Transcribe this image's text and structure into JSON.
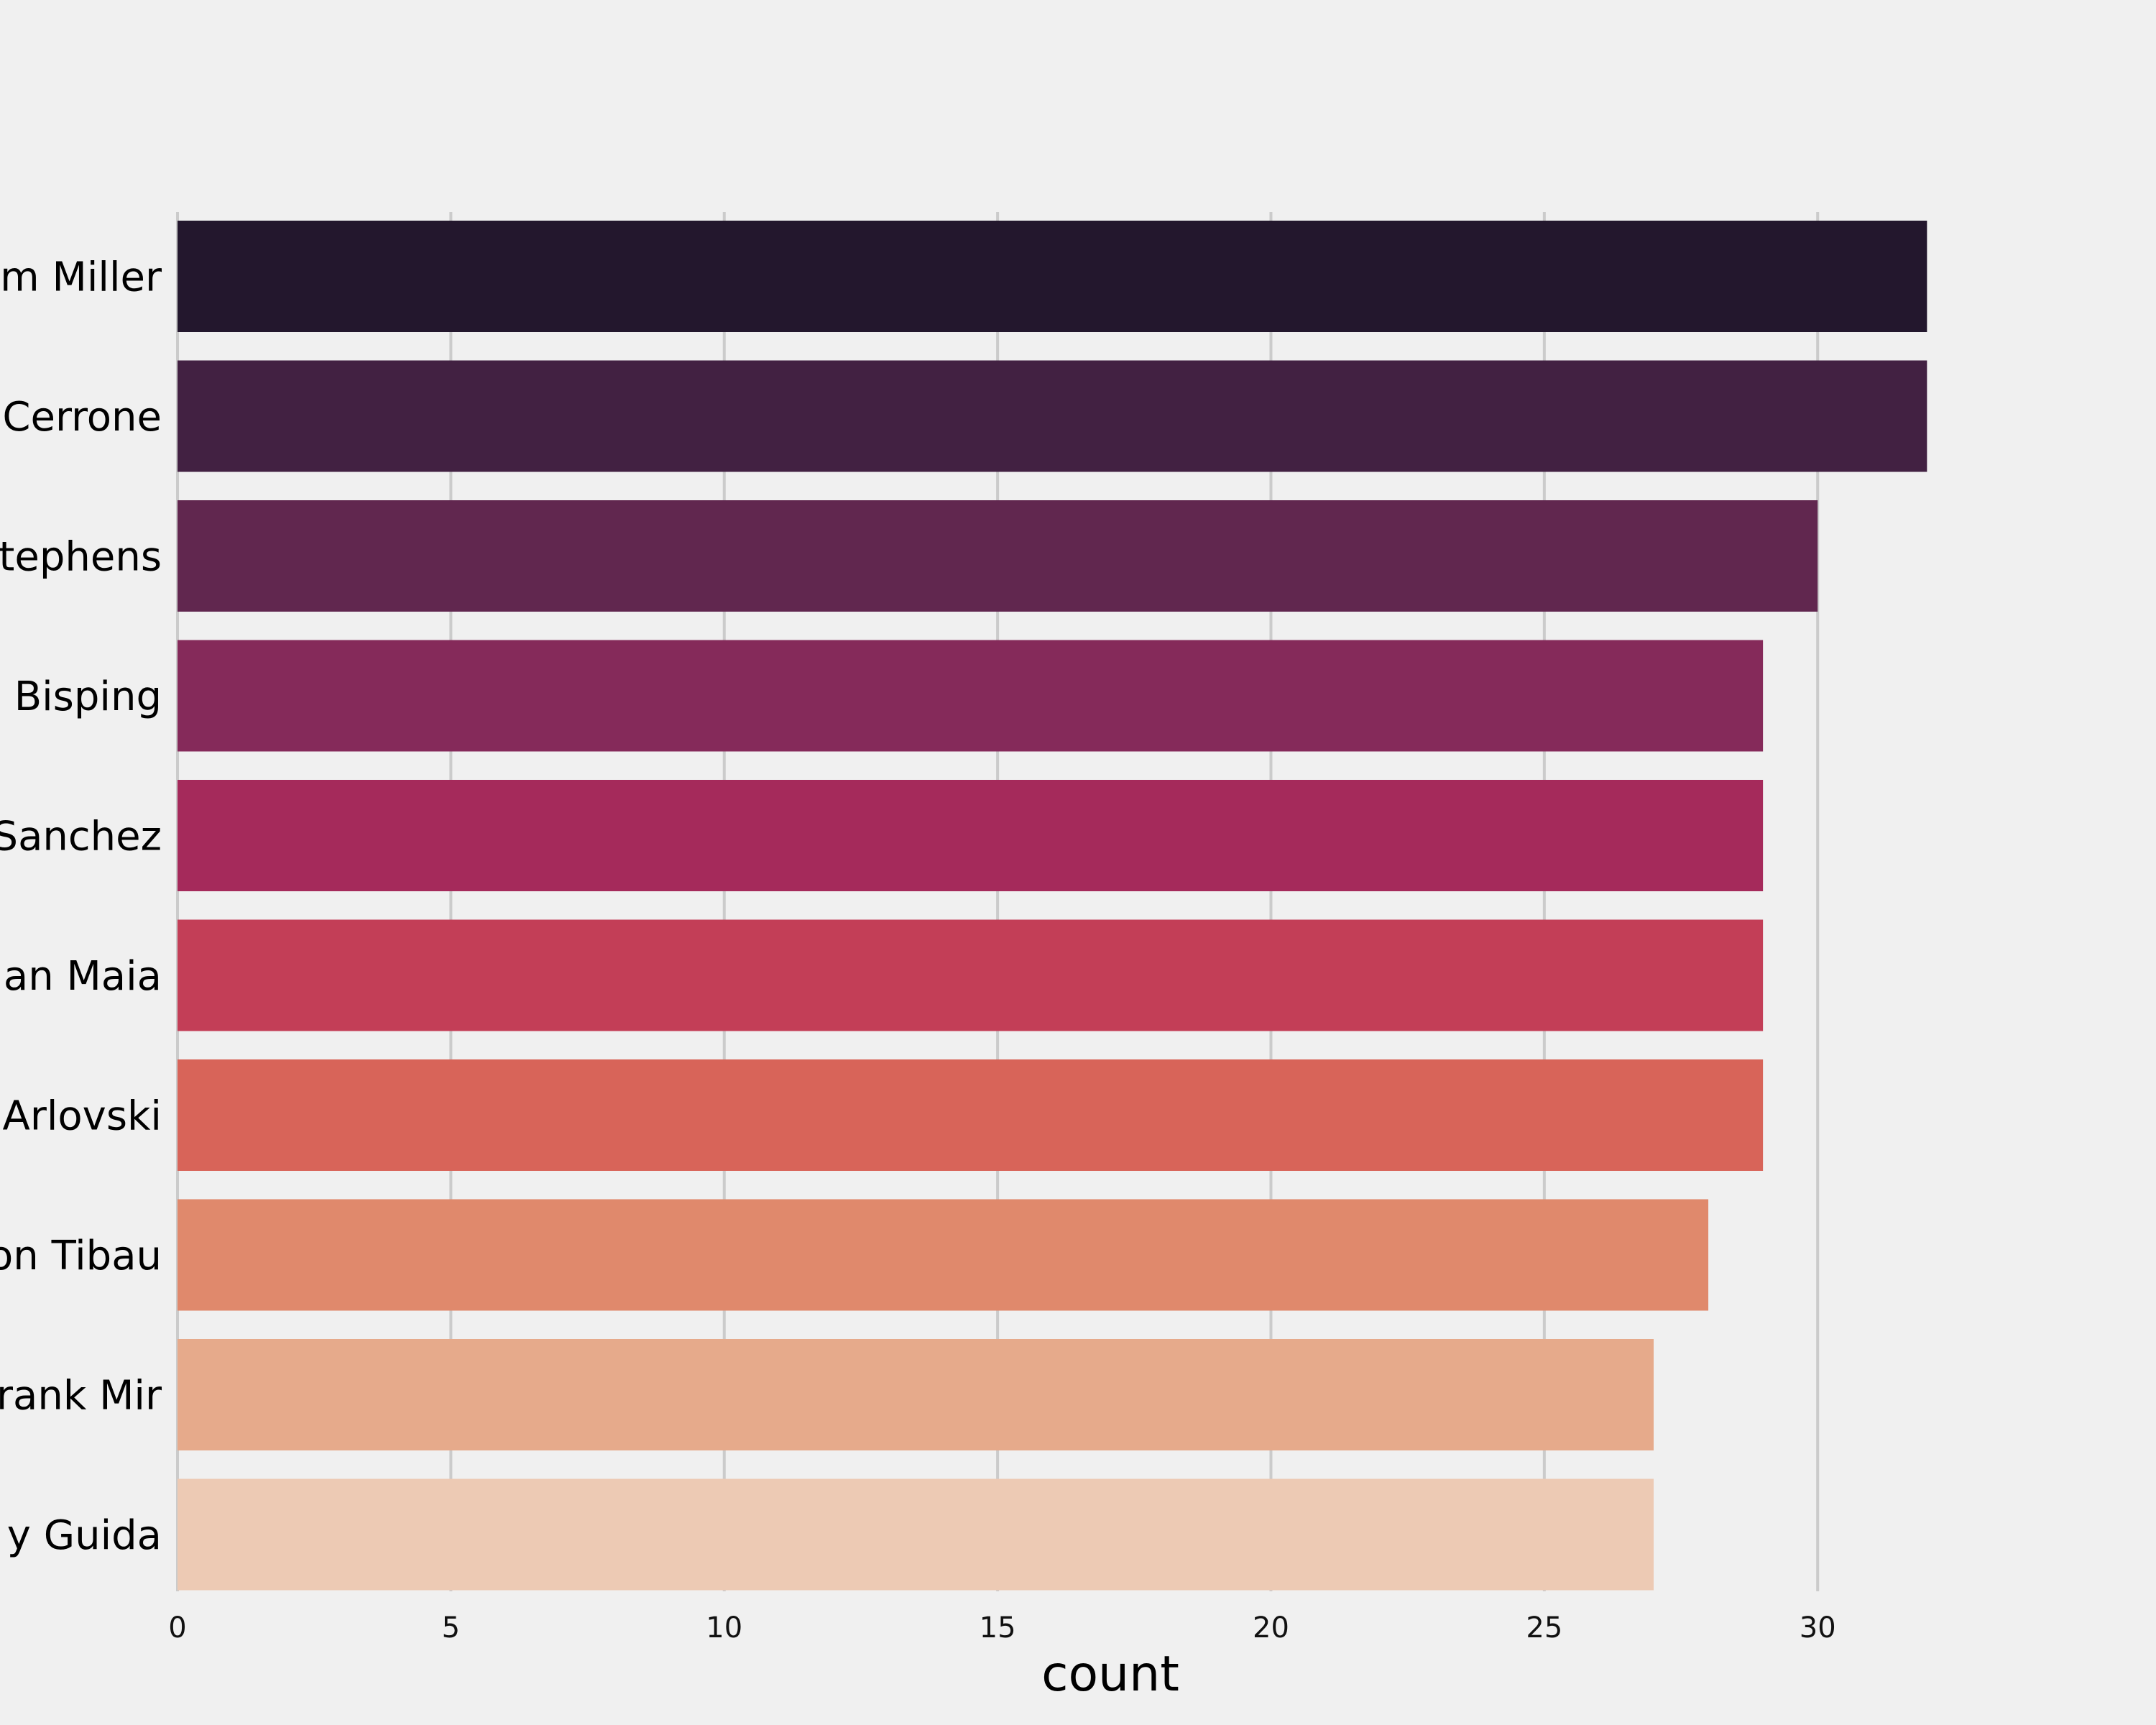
{
  "chart_data": {
    "type": "bar",
    "orientation": "horizontal",
    "categories": [
      "Jim Miller",
      "Donald Cerrone",
      "Jeremy Stephens",
      "Michael Bisping",
      "Diego Sanchez",
      "Demian Maia",
      "Andrei Arlovski",
      "Gleison Tibau",
      "Frank Mir",
      "Clay Guida"
    ],
    "visible_category_labels": [
      "m Miller",
      "Cerrone",
      "tephens",
      " Bisping",
      "Sanchez",
      "an Maia",
      "Arlovski",
      "on Tibau",
      "rank Mir",
      "y Guida"
    ],
    "values": [
      32,
      32,
      30,
      29,
      29,
      29,
      29,
      28,
      27,
      27
    ],
    "colors": [
      "#23172d",
      "#422142",
      "#61274f",
      "#852a5a",
      "#a52a5b",
      "#c33e57",
      "#d86459",
      "#e0896c",
      "#e6aa8b",
      "#edcab4"
    ],
    "xlabel": "count",
    "ylabel": "",
    "title": "",
    "xlim": [
      0,
      35.4
    ],
    "xticks": [
      "0",
      "5",
      "10",
      "15",
      "20",
      "25",
      "30"
    ],
    "grid": true,
    "background": "#f0f0f0",
    "gridline_color": "#cbcbcb"
  }
}
